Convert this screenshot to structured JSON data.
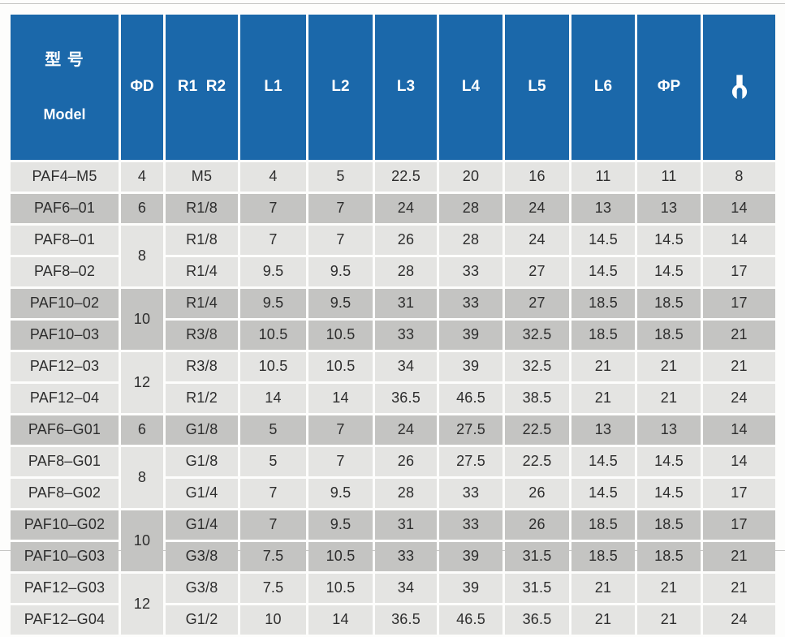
{
  "page": {
    "background": "#fdfdfc",
    "rule_color": "#c6c6c4"
  },
  "colors": {
    "header_bg": "#1b68aa",
    "header_text": "#ffffff",
    "row_light": "#e4e4e2",
    "row_dark": "#c4c4c2",
    "cell_text": "#2d2d2d",
    "gridline": "#ffffff"
  },
  "table": {
    "header": {
      "model_zh": "型 号",
      "model_en": "Model",
      "cols": [
        "ΦD",
        "R1  R2",
        "L1",
        "L2",
        "L3",
        "L4",
        "L5",
        "L6",
        "ΦP"
      ],
      "wrench_icon": "wrench-icon"
    },
    "rows": [
      {
        "model": "PAF4–M5",
        "d": "4",
        "d_span": 1,
        "thread": "M5",
        "dims": [
          "4",
          "5",
          "22.5",
          "20",
          "16",
          "11",
          "11",
          "8"
        ],
        "shade": "light"
      },
      {
        "model": "PAF6–01",
        "d": "6",
        "d_span": 1,
        "thread": "R1/8",
        "dims": [
          "7",
          "7",
          "24",
          "28",
          "24",
          "13",
          "13",
          "14"
        ],
        "shade": "dark"
      },
      {
        "model": "PAF8–01",
        "d": "8",
        "d_span": 2,
        "thread": "R1/8",
        "dims": [
          "7",
          "7",
          "26",
          "28",
          "24",
          "14.5",
          "14.5",
          "14"
        ],
        "shade": "light"
      },
      {
        "model": "PAF8–02",
        "d": null,
        "d_span": 0,
        "thread": "R1/4",
        "dims": [
          "9.5",
          "9.5",
          "28",
          "33",
          "27",
          "14.5",
          "14.5",
          "17"
        ],
        "shade": "light"
      },
      {
        "model": "PAF10–02",
        "d": "10",
        "d_span": 2,
        "thread": "R1/4",
        "dims": [
          "9.5",
          "9.5",
          "31",
          "33",
          "27",
          "18.5",
          "18.5",
          "17"
        ],
        "shade": "dark"
      },
      {
        "model": "PAF10–03",
        "d": null,
        "d_span": 0,
        "thread": "R3/8",
        "dims": [
          "10.5",
          "10.5",
          "33",
          "39",
          "32.5",
          "18.5",
          "18.5",
          "21"
        ],
        "shade": "dark"
      },
      {
        "model": "PAF12–03",
        "d": "12",
        "d_span": 2,
        "thread": "R3/8",
        "dims": [
          "10.5",
          "10.5",
          "34",
          "39",
          "32.5",
          "21",
          "21",
          "21"
        ],
        "shade": "light"
      },
      {
        "model": "PAF12–04",
        "d": null,
        "d_span": 0,
        "thread": "R1/2",
        "dims": [
          "14",
          "14",
          "36.5",
          "46.5",
          "38.5",
          "21",
          "21",
          "24"
        ],
        "shade": "light"
      },
      {
        "model": "PAF6–G01",
        "d": "6",
        "d_span": 1,
        "thread": "G1/8",
        "dims": [
          "5",
          "7",
          "24",
          "27.5",
          "22.5",
          "13",
          "13",
          "14"
        ],
        "shade": "dark"
      },
      {
        "model": "PAF8–G01",
        "d": "8",
        "d_span": 2,
        "thread": "G1/8",
        "dims": [
          "5",
          "7",
          "26",
          "27.5",
          "22.5",
          "14.5",
          "14.5",
          "14"
        ],
        "shade": "light"
      },
      {
        "model": "PAF8–G02",
        "d": null,
        "d_span": 0,
        "thread": "G1/4",
        "dims": [
          "7",
          "9.5",
          "28",
          "33",
          "26",
          "14.5",
          "14.5",
          "17"
        ],
        "shade": "light"
      },
      {
        "model": "PAF10–G02",
        "d": "10",
        "d_span": 2,
        "thread": "G1/4",
        "dims": [
          "7",
          "9.5",
          "31",
          "33",
          "26",
          "18.5",
          "18.5",
          "17"
        ],
        "shade": "dark"
      },
      {
        "model": "PAF10–G03",
        "d": null,
        "d_span": 0,
        "thread": "G3/8",
        "dims": [
          "7.5",
          "10.5",
          "33",
          "39",
          "31.5",
          "18.5",
          "18.5",
          "21"
        ],
        "shade": "dark"
      },
      {
        "model": "PAF12–G03",
        "d": "12",
        "d_span": 2,
        "thread": "G3/8",
        "dims": [
          "7.5",
          "10.5",
          "34",
          "39",
          "31.5",
          "21",
          "21",
          "21"
        ],
        "shade": "light"
      },
      {
        "model": "PAF12–G04",
        "d": null,
        "d_span": 0,
        "thread": "G1/2",
        "dims": [
          "10",
          "14",
          "36.5",
          "46.5",
          "36.5",
          "21",
          "21",
          "24"
        ],
        "shade": "light"
      }
    ]
  }
}
